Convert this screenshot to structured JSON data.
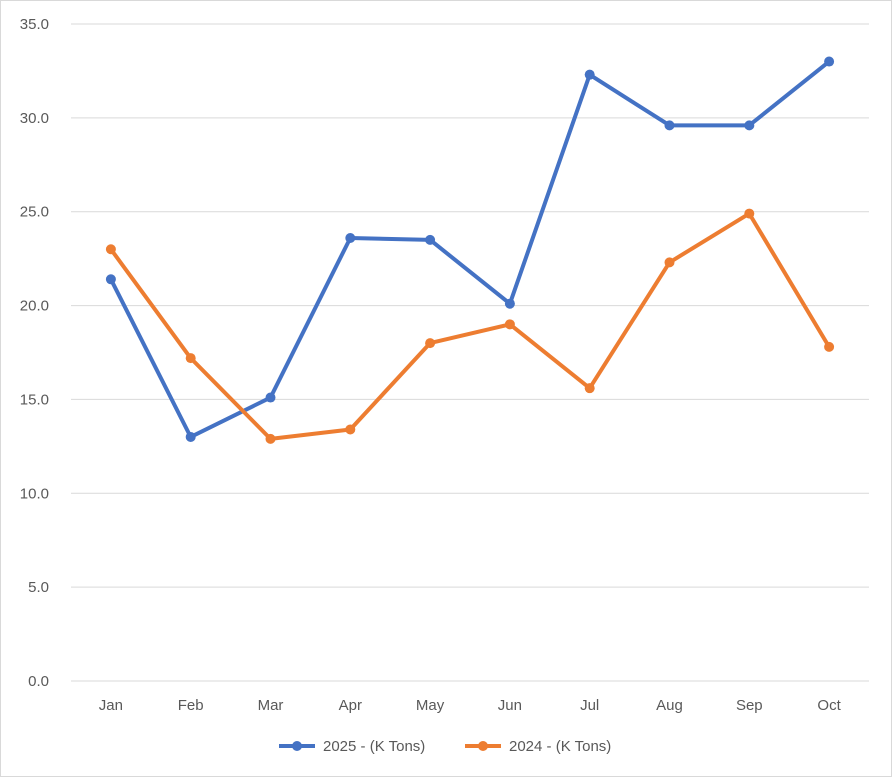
{
  "chart_data": {
    "type": "line",
    "categories": [
      "Jan",
      "Feb",
      "Mar",
      "Apr",
      "May",
      "Jun",
      "Jul",
      "Aug",
      "Sep",
      "Oct"
    ],
    "series": [
      {
        "name": "2025 - (K Tons)",
        "color": "#4472c4",
        "values": [
          21.4,
          13.0,
          15.1,
          23.6,
          23.5,
          20.1,
          32.3,
          29.6,
          29.6,
          33.0
        ]
      },
      {
        "name": "2024 - (K Tons)",
        "color": "#ed7d31",
        "values": [
          23.0,
          17.2,
          12.9,
          13.4,
          18.0,
          19.0,
          15.6,
          22.3,
          24.9,
          17.8
        ]
      }
    ],
    "yticks": [
      "0.0",
      "5.0",
      "10.0",
      "15.0",
      "20.0",
      "25.0",
      "30.0",
      "35.0"
    ],
    "ylim": [
      0,
      35
    ],
    "grid": true,
    "legend": "bottom",
    "gridColor": "#d9d9d9"
  }
}
